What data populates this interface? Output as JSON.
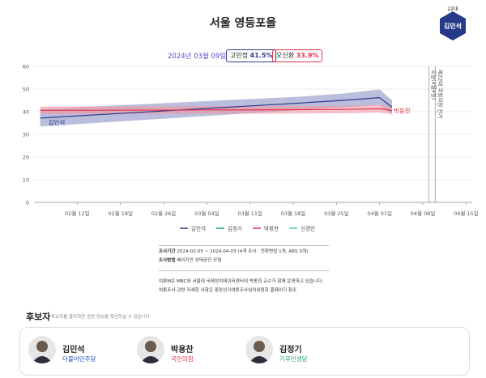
{
  "header": {
    "title": "서울 영등포을",
    "badge_term": "22대",
    "badge_name": "김민석",
    "date": "2024년 03월 09일",
    "chips": [
      {
        "name": "고민정",
        "value": "41.5%"
      },
      {
        "name": "오신환",
        "value": "33.9%"
      }
    ]
  },
  "chart_data": {
    "type": "line",
    "ylim": [
      0,
      60
    ],
    "yticks": [
      0,
      10,
      20,
      30,
      40,
      50,
      60
    ],
    "xlim": [
      "02월 05일",
      "04월 16일"
    ],
    "xticks": [
      "02월 12일",
      "02월 19일",
      "02월 26일",
      "03월 04일",
      "03월 11일",
      "03월 18일",
      "03월 25일",
      "04월 01일",
      "04월 08일",
      "04월 15일"
    ],
    "x": [
      "02월 06일",
      "02월 13일",
      "02월 20일",
      "02월 27일",
      "03월 05일",
      "03월 12일",
      "03월 19일",
      "03월 26일",
      "04월 01일",
      "04월 03일"
    ],
    "series": [
      {
        "name": "김민석",
        "color": "#2d3a8c",
        "band_color": "#8c93c4",
        "values": [
          37.2,
          38.3,
          39.4,
          40.5,
          41.6,
          42.7,
          43.8,
          45.0,
          46.2,
          42.0
        ],
        "lower": [
          33.5,
          34.7,
          35.9,
          37.1,
          38.3,
          39.5,
          40.7,
          41.9,
          42.8,
          39.0
        ],
        "upper": [
          41.2,
          42.1,
          43.0,
          43.9,
          44.8,
          45.7,
          46.6,
          48.0,
          49.8,
          45.0
        ]
      },
      {
        "name": "김정기",
        "color": "#1ea36b"
      },
      {
        "name": "박용찬",
        "color": "#e0364a",
        "band_color": "#f19aa5",
        "values": [
          40.6,
          40.6,
          40.7,
          40.7,
          40.8,
          40.8,
          40.9,
          41.0,
          41.3,
          40.5
        ],
        "lower": [
          38.9,
          38.9,
          39.0,
          39.0,
          39.1,
          39.1,
          39.2,
          39.3,
          39.6,
          38.8
        ],
        "upper": [
          42.3,
          42.3,
          42.4,
          42.4,
          42.5,
          42.5,
          42.6,
          42.7,
          43.0,
          42.2
        ]
      },
      {
        "name": "신경민",
        "color": "#4dc8b0"
      }
    ],
    "annotations": [
      {
        "x": "04월 09일",
        "label": "오늘(4월9일)"
      },
      {
        "x": "04월 10일",
        "label": "제22대 국회의원 선거"
      }
    ]
  },
  "notes": {
    "period_label": "조사기간",
    "period": "2024-02-05 ~ 2024-04-03 (4개 조사 · 전화면접 1개, ARS 3개)",
    "method_label": "조사방법",
    "method": "베이지안 상태공간 모형",
    "line1": "여론M은 MBC와 서울대 국제정치데이터센터의 박종희 교수가 함께 운영하고 있습니다.",
    "line2": "여론조사 관련 자세한 사항은 중앙선거여론조사심의위원회 홈페이지 참조"
  },
  "candidates": {
    "title": "후보자",
    "hint": "후보자를 클릭하면 관련 정보를 확인하실 수 있습니다",
    "list": [
      {
        "name": "김민석",
        "party": "더불어민주당",
        "color": "#1f4fbf"
      },
      {
        "name": "박용찬",
        "party": "국민의힘",
        "color": "#e0364a"
      },
      {
        "name": "김정기",
        "party": "기후민생당",
        "color": "#1ea36b"
      }
    ]
  }
}
